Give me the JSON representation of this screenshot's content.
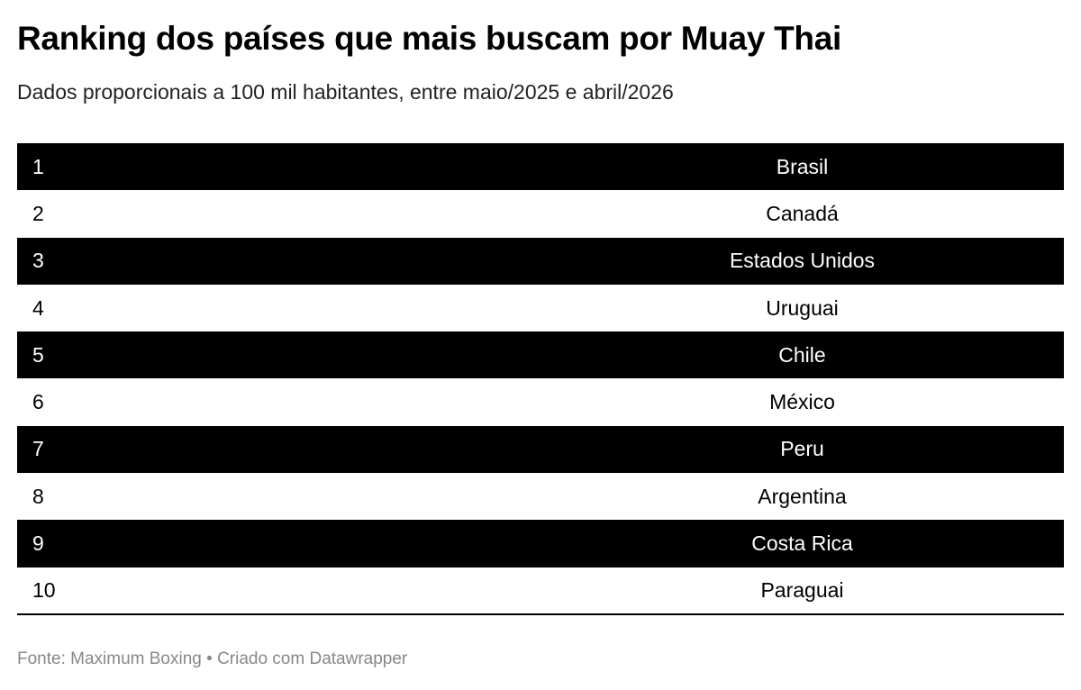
{
  "header": {
    "title": "Ranking dos países que mais buscam por Muay Thai",
    "subtitle": "Dados proporcionais a 100 mil habitantes, entre maio/2025 e abril/2026"
  },
  "table": {
    "rows": [
      [
        1,
        "Brasil"
      ],
      [
        2,
        "Canadá"
      ],
      [
        3,
        "Estados Unidos"
      ],
      [
        4,
        "Uruguai"
      ],
      [
        5,
        "Chile"
      ],
      [
        6,
        "México"
      ],
      [
        7,
        "Peru"
      ],
      [
        8,
        "Argentina"
      ],
      [
        9,
        "Costa Rica"
      ],
      [
        10,
        "Paraguai"
      ]
    ]
  },
  "footer": {
    "text": "Fonte: Maximum Boxing • Criado com Datawrapper"
  }
}
